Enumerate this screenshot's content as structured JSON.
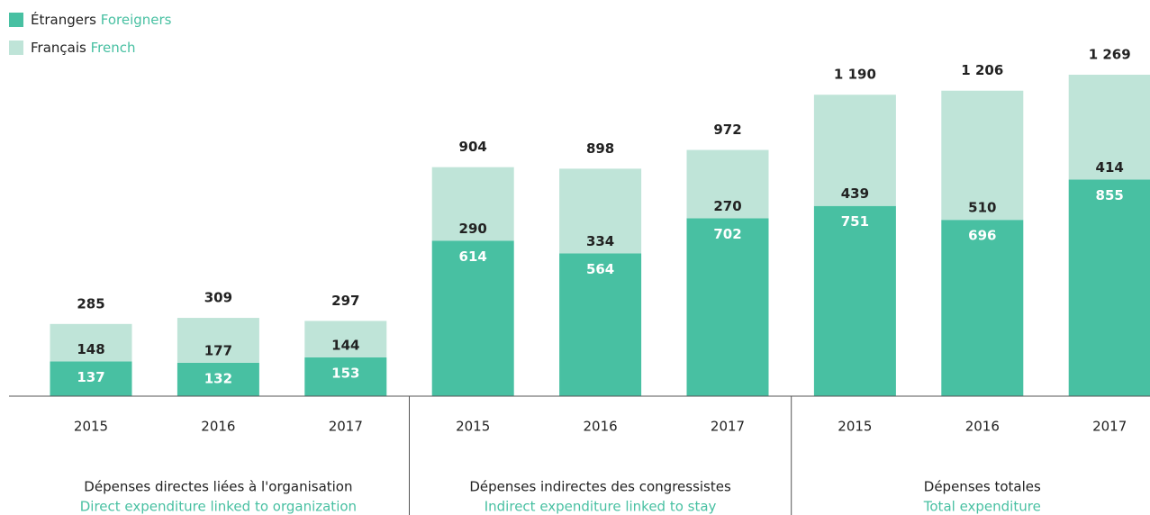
{
  "chart_data": {
    "type": "stacked_bar",
    "categories": [
      "2015",
      "2016",
      "2017",
      "2015",
      "2016",
      "2017",
      "2015",
      "2016",
      "2017"
    ],
    "series": [
      {
        "name": "Étrangers",
        "name_en": "Foreigners",
        "color": "#48c0a2",
        "values": [
          137,
          132,
          153,
          614,
          564,
          702,
          751,
          696,
          855
        ]
      },
      {
        "name": "Français",
        "name_en": "French",
        "color": "#bfe4d8",
        "values": [
          148,
          177,
          144,
          290,
          334,
          270,
          439,
          510,
          414
        ]
      }
    ],
    "total_labels": [
      "285",
      "309",
      "297",
      "904",
      "898",
      "972",
      "1 190",
      "1 206",
      "1 269"
    ],
    "groups": [
      {
        "label": "Dépenses directes liées à l'organisation",
        "label_en": "Direct expenditure linked to organization"
      },
      {
        "label": "Dépenses indirectes des congressistes",
        "label_en": "Indirect expenditure linked to stay"
      },
      {
        "label": "Dépenses totales",
        "label_en": "Total expenditure"
      }
    ]
  }
}
